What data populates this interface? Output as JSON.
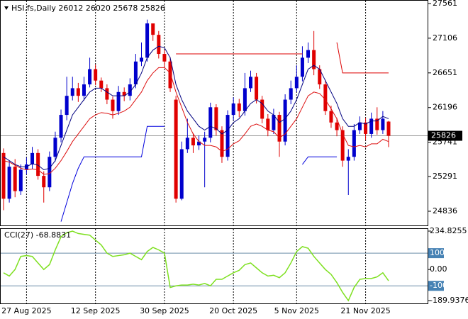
{
  "chart_data": [
    {
      "type": "candlestick",
      "title": "HSI.fs,Daily 26012 26020 25678 25826",
      "categories": [
        null,
        null,
        null,
        null,
        "27 Aug 2025",
        null,
        null,
        null,
        null,
        null,
        null,
        null,
        null,
        null,
        null,
        null,
        "12 Sep 2025",
        null,
        null,
        null,
        null,
        null,
        null,
        null,
        null,
        null,
        null,
        null,
        "30 Sep 2025",
        null,
        null,
        null,
        null,
        null,
        null,
        null,
        null,
        null,
        null,
        null,
        "20 Oct 2025",
        null,
        null,
        null,
        null,
        null,
        null,
        null,
        null,
        null,
        null,
        "5 Nov 2025",
        null,
        null,
        null,
        null,
        null,
        null,
        null,
        null,
        null,
        null,
        null,
        "21 Nov 2025",
        null,
        null,
        null,
        null
      ],
      "open": [
        25600,
        25000,
        25420,
        25100,
        25380,
        25450,
        25600,
        25300,
        25150,
        25550,
        25800,
        26100,
        26350,
        26450,
        26350,
        26500,
        26700,
        26550,
        26450,
        26300,
        26150,
        26400,
        26350,
        26500,
        26800,
        26850,
        27300,
        27150,
        26900,
        26800,
        26300,
        25000,
        25650,
        25800,
        25700,
        25750,
        25800,
        26200,
        25900,
        25550,
        26100,
        26250,
        26150,
        26450,
        26600,
        26300,
        26050,
        25900,
        26100,
        25750,
        26300,
        26450,
        26600,
        26850,
        26950,
        26700,
        26500,
        26150,
        26000,
        25900,
        25500,
        25550,
        25900,
        26000,
        25850,
        26050,
        25900,
        26012
      ],
      "high": [
        25660,
        25500,
        25520,
        25450,
        25540,
        25680,
        25650,
        25360,
        25620,
        25880,
        26170,
        26600,
        26600,
        26520,
        26600,
        26850,
        26760,
        26590,
        26500,
        26340,
        26480,
        26460,
        26580,
        26900,
        27050,
        27350,
        27280,
        27200,
        26950,
        26860,
        26350,
        25750,
        26050,
        25860,
        25830,
        25880,
        26260,
        26240,
        25950,
        26160,
        26330,
        26310,
        26650,
        26680,
        26650,
        26350,
        26110,
        26180,
        26140,
        26370,
        26550,
        26750,
        27000,
        27050,
        27200,
        26750,
        26560,
        26220,
        26060,
        25950,
        25650,
        25980,
        26080,
        26060,
        26130,
        26200,
        26150,
        26020
      ],
      "low": [
        24850,
        24950,
        25020,
        25050,
        25320,
        25390,
        25250,
        24950,
        25100,
        25490,
        25740,
        26030,
        26290,
        26270,
        26290,
        26460,
        26490,
        26400,
        26240,
        26050,
        26100,
        26280,
        26290,
        26450,
        26740,
        26800,
        27070,
        26840,
        26720,
        26400,
        24950,
        24980,
        25600,
        25600,
        25640,
        25150,
        25740,
        25830,
        25470,
        25500,
        26030,
        26070,
        26090,
        26400,
        26250,
        25990,
        25820,
        25850,
        25550,
        25700,
        26240,
        26400,
        26540,
        26780,
        26620,
        26440,
        26100,
        25930,
        25820,
        25420,
        25050,
        25500,
        25850,
        25770,
        25800,
        25840,
        25850,
        25678
      ],
      "close": [
        25000,
        25420,
        25100,
        25380,
        25450,
        25600,
        25300,
        25150,
        25550,
        25800,
        26100,
        26350,
        26450,
        26350,
        26500,
        26700,
        26550,
        26450,
        26300,
        26150,
        26400,
        26350,
        26500,
        26800,
        26850,
        27300,
        27150,
        26900,
        26800,
        26450,
        25000,
        25650,
        25800,
        25700,
        25750,
        25800,
        26200,
        25900,
        25550,
        26100,
        26250,
        26150,
        26450,
        26600,
        26300,
        26050,
        25900,
        26100,
        25750,
        26300,
        26450,
        26600,
        26850,
        26950,
        26700,
        26500,
        26150,
        26000,
        25900,
        25500,
        25550,
        25900,
        26000,
        25850,
        26050,
        25900,
        26050,
        25826
      ],
      "up_color": "#0000cd",
      "down_color": "#e00000",
      "ylim": [
        24650,
        27607
      ],
      "yticks": [
        27561,
        27106,
        26651,
        26196,
        25741,
        25291,
        24836
      ],
      "series": [
        {
          "color": "#000080",
          "values": [
            25550,
            25500,
            25450,
            25420,
            25420,
            25460,
            25440,
            25380,
            25400,
            25500,
            25700,
            25900,
            26100,
            26200,
            26300,
            26400,
            26450,
            26450,
            26400,
            26350,
            26350,
            26350,
            26400,
            26500,
            26650,
            26850,
            26950,
            27000,
            26980,
            26850,
            26500,
            26300,
            26150,
            26050,
            25950,
            25900,
            25950,
            25920,
            25850,
            25900,
            26000,
            26050,
            26150,
            26250,
            26300,
            26250,
            26150,
            26100,
            26000,
            26050,
            26150,
            26300,
            26500,
            26700,
            26750,
            26700,
            26550,
            26400,
            26250,
            26050,
            25950,
            25950,
            26000,
            25980,
            26020,
            26020,
            26080,
            26050
          ]
        },
        {
          "color": "#dd1010",
          "values": [
            25500,
            25480,
            25440,
            25400,
            25380,
            25390,
            25380,
            25320,
            25330,
            25400,
            25500,
            25620,
            25750,
            25850,
            25950,
            26050,
            26100,
            26130,
            26120,
            26100,
            26120,
            26150,
            26200,
            26300,
            26400,
            26550,
            26650,
            26720,
            26720,
            26650,
            26400,
            26200,
            26000,
            25850,
            25750,
            25700,
            25700,
            25680,
            25620,
            25650,
            25720,
            25760,
            25850,
            25950,
            25980,
            25950,
            25900,
            25880,
            25800,
            25850,
            25950,
            26050,
            26200,
            26350,
            26400,
            26380,
            26300,
            26180,
            26050,
            25850,
            25700,
            25680,
            25700,
            25680,
            25720,
            25720,
            25780,
            25750
          ]
        },
        {
          "color": "#0000dd",
          "values": [
            null,
            null,
            null,
            null,
            null,
            null,
            null,
            null,
            null,
            null,
            24700,
            24950,
            25200,
            25400,
            25550,
            25550,
            25550,
            25550,
            25550,
            25550,
            25550,
            25550,
            25550,
            25550,
            25550,
            25950,
            25950,
            25950,
            25950,
            null,
            null,
            null,
            null,
            null,
            null,
            null,
            null,
            null,
            null,
            null,
            null,
            null,
            null,
            null,
            null,
            null,
            null,
            null,
            null,
            null,
            null,
            null,
            25450,
            25550,
            25550,
            25550,
            25550,
            25550,
            25550,
            null,
            null,
            null,
            null,
            null,
            null,
            null,
            null,
            null
          ]
        },
        {
          "color": "#dd0000",
          "values": [
            null,
            null,
            null,
            null,
            null,
            null,
            null,
            null,
            null,
            null,
            null,
            null,
            null,
            null,
            null,
            null,
            null,
            null,
            null,
            null,
            null,
            null,
            null,
            null,
            null,
            null,
            null,
            null,
            null,
            null,
            26900,
            26900,
            26900,
            26900,
            26900,
            26900,
            26900,
            26900,
            26900,
            26900,
            26900,
            26900,
            26900,
            26900,
            26900,
            26900,
            26900,
            26900,
            26900,
            26900,
            26900,
            26900,
            26900,
            null,
            null,
            null,
            null,
            null,
            27050,
            26650,
            26650,
            26650,
            26650,
            26650,
            26650,
            26650,
            26650,
            26650
          ]
        }
      ]
    },
    {
      "type": "line",
      "title": "CCI(27) -68.8831",
      "series": [
        {
          "color": "#7ee020",
          "values": [
            -20,
            -40,
            0,
            80,
            85,
            80,
            40,
            0,
            30,
            120,
            200,
            225,
            234.8255,
            220,
            215,
            210,
            180,
            150,
            100,
            80,
            85,
            90,
            100,
            80,
            60,
            110,
            135,
            120,
            100,
            -110,
            -100,
            -95,
            -95,
            -90,
            -95,
            -85,
            -100,
            -60,
            -60,
            -40,
            -20,
            -5,
            30,
            40,
            10,
            -20,
            -40,
            -35,
            -50,
            -20,
            40,
            110,
            140,
            130,
            80,
            40,
            0,
            -30,
            -80,
            -140,
            -189.9376,
            -110,
            -60,
            -55,
            -55,
            -45,
            -20,
            -68.8831
          ]
        }
      ],
      "ylim": [
        -189.9376,
        234.8255
      ],
      "yticks": [
        234.8255,
        100,
        {
          "value": 0,
          "label": "0.00"
        },
        -100,
        -189.9376
      ]
    }
  ]
}
